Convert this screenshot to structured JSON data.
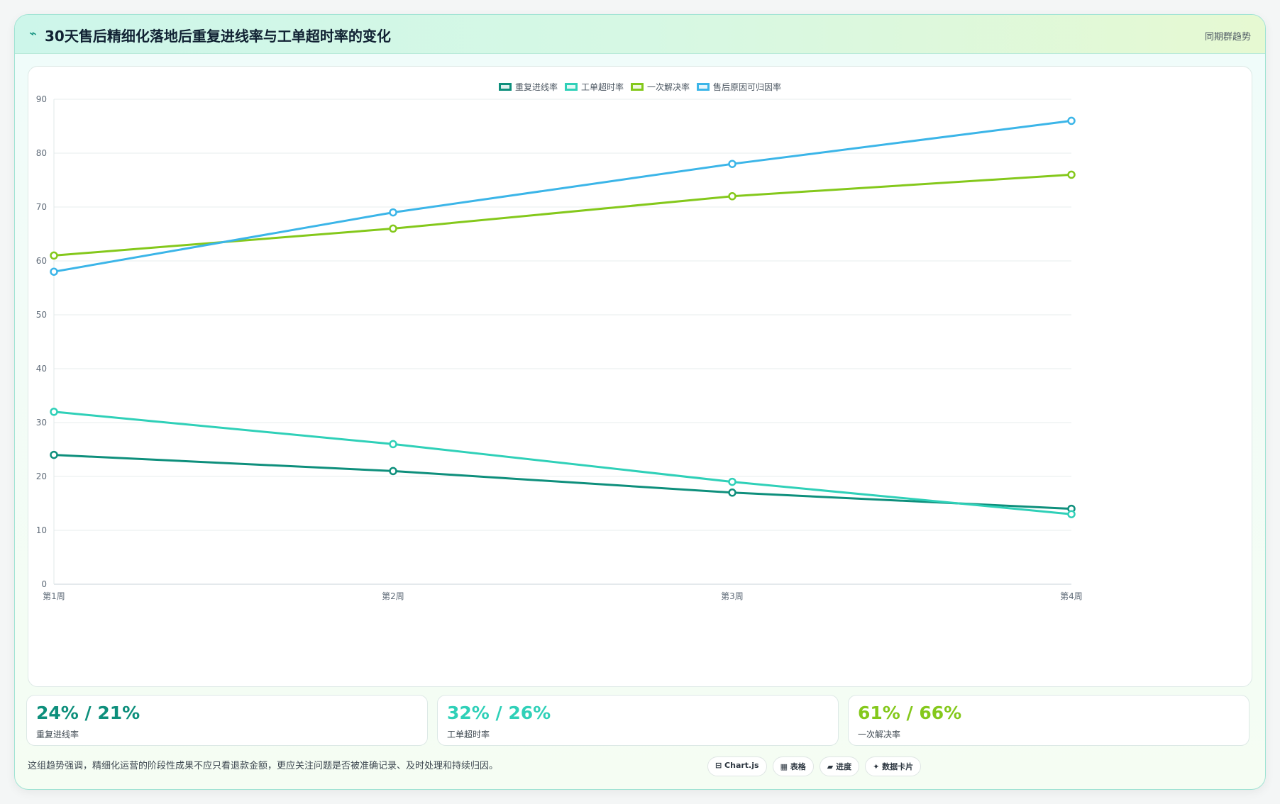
{
  "header": {
    "icon": "⌁",
    "title": "30天售后精细化落地后重复进线率与工单超时率的变化",
    "tag": "同期群趋势"
  },
  "chart_data": {
    "type": "line",
    "x": [
      "第1周",
      "第2周",
      "第3周",
      "第4周"
    ],
    "ylim": [
      0,
      90
    ],
    "yticks": [
      0,
      10,
      20,
      30,
      40,
      50,
      60,
      70,
      80,
      90
    ],
    "grid": true,
    "legend": "top-center",
    "series": [
      {
        "name": "重复进线率",
        "color": "#0e8f7c",
        "values": [
          24,
          21,
          17,
          14
        ]
      },
      {
        "name": "工单超时率",
        "color": "#2fd0b8",
        "values": [
          32,
          26,
          19,
          13
        ]
      },
      {
        "name": "一次解决率",
        "color": "#84c81b",
        "values": [
          61,
          66,
          72,
          76
        ]
      },
      {
        "name": "售后原因可归因率",
        "color": "#3bb5e8",
        "values": [
          58,
          69,
          78,
          86
        ]
      }
    ]
  },
  "stats": [
    {
      "value": "24% / 21%",
      "label": "重复进线率",
      "color": "#0e8f7c"
    },
    {
      "value": "32% / 26%",
      "label": "工单超时率",
      "color": "#2fd0b8"
    },
    {
      "value": "61% / 66%",
      "label": "一次解决率",
      "color": "#84c81b"
    }
  ],
  "footnote": "这组趋势强调，精细化运营的阶段性成果不应只看退款金额，更应关注问题是否被准确记录、及时处理和持续归因。",
  "badges": [
    "⊟ Chart.js",
    "▦ 表格",
    "▰ 进度",
    "✦ 数据卡片"
  ]
}
